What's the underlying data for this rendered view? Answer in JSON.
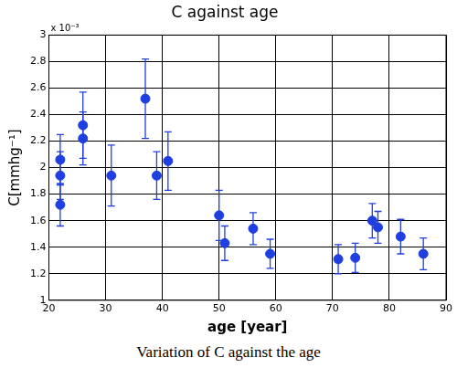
{
  "chart_data": {
    "type": "scatter",
    "title": "C against age",
    "x_label": "age [year]",
    "y_label": "C[mmhg⁻¹]",
    "annotations": [
      "x 10⁻³"
    ],
    "caption": "Variation of C against the age",
    "x": [
      22,
      22,
      22,
      26,
      26,
      31,
      37,
      39,
      41,
      50,
      51,
      56,
      59,
      71,
      74,
      77,
      78,
      82,
      86
    ],
    "values": [
      2.06,
      1.94,
      1.72,
      2.32,
      2.22,
      1.94,
      2.52,
      1.94,
      2.05,
      1.64,
      1.43,
      1.54,
      1.35,
      1.31,
      1.32,
      1.6,
      1.55,
      1.48,
      1.35
    ],
    "errors": [
      0.19,
      0.18,
      0.16,
      0.25,
      0.2,
      0.23,
      0.3,
      0.18,
      0.22,
      0.19,
      0.13,
      0.12,
      0.11,
      0.11,
      0.11,
      0.13,
      0.12,
      0.13,
      0.12
    ],
    "color": "#1f3fe0",
    "marker": "circle",
    "xlim": [
      20,
      90
    ],
    "xticks": [
      20,
      30,
      40,
      50,
      60,
      70,
      80,
      90
    ],
    "ylim": [
      1,
      3
    ],
    "yticks": [
      1,
      1.2,
      1.4,
      1.6,
      1.8,
      2,
      2.2,
      2.4,
      2.6,
      2.8,
      3
    ],
    "grid": true
  }
}
